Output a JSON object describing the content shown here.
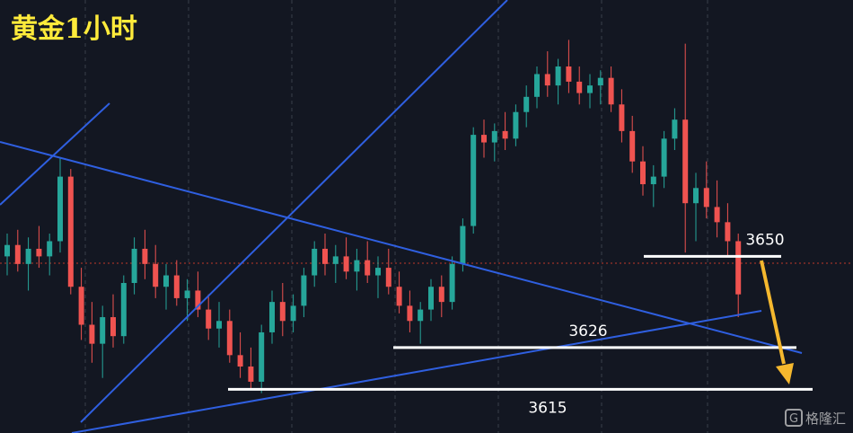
{
  "chart_data": {
    "type": "candlestick",
    "title": "黄金1小时",
    "open": [
      3650,
      3653,
      3648,
      3652,
      3650,
      3654,
      3671,
      3642,
      3632,
      3627,
      3634,
      3629,
      3643,
      3652,
      3648,
      3642,
      3645,
      3639,
      3641,
      3636,
      3631,
      3633,
      3624,
      3621,
      3617,
      3630,
      3638,
      3633,
      3637,
      3645,
      3652,
      3648,
      3650,
      3646,
      3649,
      3645,
      3647,
      3642,
      3637,
      3633,
      3636,
      3642,
      3638,
      3648,
      3658,
      3682,
      3680,
      3683,
      3681,
      3688,
      3692,
      3698,
      3695,
      3700,
      3696,
      3693,
      3695,
      3697,
      3690,
      3683,
      3675,
      3669,
      3671,
      3681,
      3686,
      3664,
      3668,
      3663,
      3659,
      3654
    ],
    "high": [
      3656,
      3657,
      3655,
      3658,
      3656,
      3676,
      3673,
      3647,
      3638,
      3637,
      3640,
      3645,
      3655,
      3657,
      3653,
      3648,
      3649,
      3644,
      3646,
      3640,
      3638,
      3636,
      3630,
      3626,
      3632,
      3641,
      3643,
      3640,
      3647,
      3654,
      3656,
      3653,
      3655,
      3652,
      3654,
      3650,
      3652,
      3646,
      3641,
      3638,
      3644,
      3645,
      3650,
      3660,
      3684,
      3686,
      3685,
      3688,
      3690,
      3695,
      3700,
      3704,
      3702,
      3707,
      3700,
      3698,
      3699,
      3700,
      3694,
      3687,
      3679,
      3674,
      3683,
      3689,
      3706,
      3672,
      3675,
      3670,
      3664,
      3656
    ],
    "low": [
      3645,
      3646,
      3641,
      3647,
      3645,
      3651,
      3640,
      3628,
      3622,
      3618,
      3626,
      3627,
      3640,
      3644,
      3639,
      3636,
      3637,
      3633,
      3634,
      3628,
      3626,
      3622,
      3618,
      3615,
      3614,
      3627,
      3629,
      3630,
      3634,
      3642,
      3645,
      3643,
      3644,
      3641,
      3643,
      3639,
      3640,
      3635,
      3630,
      3627,
      3633,
      3634,
      3636,
      3646,
      3656,
      3676,
      3675,
      3678,
      3679,
      3684,
      3689,
      3692,
      3690,
      3693,
      3690,
      3689,
      3690,
      3688,
      3680,
      3672,
      3666,
      3663,
      3668,
      3678,
      3651,
      3654,
      3660,
      3655,
      3650,
      3634
    ],
    "close": [
      3653,
      3648,
      3652,
      3650,
      3654,
      3671,
      3642,
      3632,
      3627,
      3634,
      3629,
      3643,
      3652,
      3648,
      3642,
      3645,
      3639,
      3641,
      3636,
      3631,
      3633,
      3624,
      3621,
      3617,
      3630,
      3638,
      3633,
      3637,
      3645,
      3652,
      3648,
      3650,
      3646,
      3649,
      3645,
      3647,
      3642,
      3637,
      3633,
      3636,
      3642,
      3638,
      3648,
      3658,
      3682,
      3680,
      3683,
      3681,
      3688,
      3692,
      3698,
      3695,
      3700,
      3696,
      3693,
      3695,
      3697,
      3690,
      3683,
      3675,
      3669,
      3671,
      3681,
      3686,
      3664,
      3668,
      3663,
      3659,
      3654,
      3640
    ],
    "up_color": "#26a69a",
    "down_color": "#ef5350",
    "ylim": [
      3603.5,
      3717.5
    ],
    "levels": [
      3650,
      3626,
      3615
    ]
  },
  "watermark": "格隆汇"
}
